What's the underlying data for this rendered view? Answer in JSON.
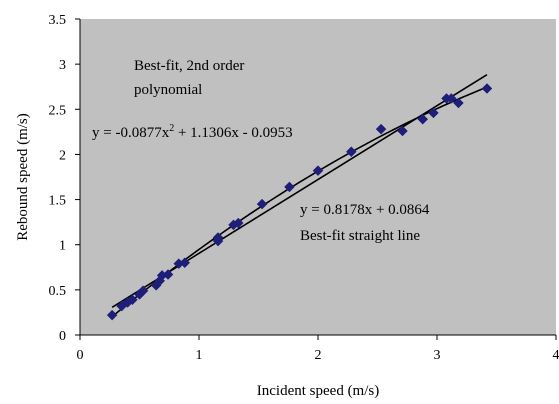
{
  "chart_data": {
    "type": "scatter",
    "title": "",
    "xlabel": "Incident speed (m/s)",
    "ylabel": "Rebound speed (m/s)",
    "xlim": [
      0,
      4
    ],
    "ylim": [
      0,
      3.5
    ],
    "xticks": [
      "0",
      "1",
      "2",
      "3",
      "4"
    ],
    "yticks": [
      "0",
      "0.5",
      "1",
      "1.5",
      "2",
      "2.5",
      "3",
      "3.5"
    ],
    "grid": false,
    "plot_background": "#c0c0c0",
    "marker_color": "#1f1f7a",
    "line_color": "#000000",
    "series": [
      {
        "marker": "diamond",
        "points": [
          [
            0.27,
            0.22
          ],
          [
            0.35,
            0.32
          ],
          [
            0.4,
            0.36
          ],
          [
            0.44,
            0.39
          ],
          [
            0.5,
            0.45
          ],
          [
            0.53,
            0.49
          ],
          [
            0.64,
            0.55
          ],
          [
            0.67,
            0.6
          ],
          [
            0.69,
            0.66
          ],
          [
            0.74,
            0.67
          ],
          [
            0.83,
            0.79
          ],
          [
            0.88,
            0.8
          ],
          [
            1.16,
            1.04
          ],
          [
            1.16,
            1.08
          ],
          [
            1.29,
            1.22
          ],
          [
            1.33,
            1.24
          ],
          [
            1.53,
            1.45
          ],
          [
            1.76,
            1.64
          ],
          [
            2.0,
            1.82
          ],
          [
            2.28,
            2.03
          ],
          [
            2.53,
            2.28
          ],
          [
            2.71,
            2.26
          ],
          [
            2.88,
            2.39
          ],
          [
            2.97,
            2.46
          ],
          [
            3.08,
            2.62
          ],
          [
            3.12,
            2.62
          ],
          [
            3.18,
            2.57
          ],
          [
            3.42,
            2.73
          ]
        ]
      }
    ],
    "fits": [
      {
        "kind": "polynomial",
        "coefficients": [
          -0.0877,
          1.1306,
          -0.0953
        ],
        "x_range": [
          0.27,
          3.42
        ],
        "equation_label": "y = -0.0877x",
        "equation_exponent": "2",
        "equation_suffix": " + 1.1306x - 0.0953",
        "name_lines": [
          "Best-fit, 2nd order",
          "polynomial"
        ]
      },
      {
        "kind": "linear",
        "coefficients": [
          0.8178,
          0.0864
        ],
        "x_range": [
          0.27,
          3.42
        ],
        "equation_label": "y = 0.8178x + 0.0864",
        "name_lines": [
          "Best-fit straight line"
        ]
      }
    ]
  }
}
